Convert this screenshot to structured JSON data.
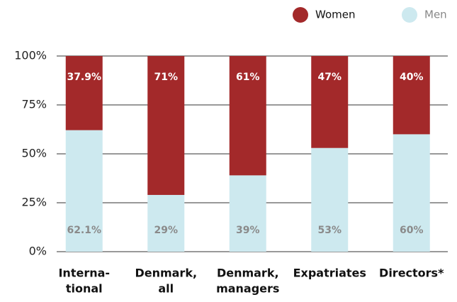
{
  "chart_data": {
    "type": "stacked_bar",
    "categories": [
      [
        "Interna-",
        "tional"
      ],
      [
        "Denmark,",
        "all"
      ],
      [
        "Denmark,",
        "managers"
      ],
      [
        "Expatriates"
      ],
      [
        "Directors*"
      ]
    ],
    "series": [
      {
        "name": "Women",
        "color": "#a3292a",
        "values": [
          37.9,
          71,
          61,
          47,
          40
        ],
        "value_labels": [
          "37.9%",
          "71%",
          "61%",
          "47%",
          "40%"
        ]
      },
      {
        "name": "Men",
        "color": "#cde9ef",
        "values": [
          62.1,
          29,
          39,
          53,
          60
        ],
        "value_labels": [
          "62.1%",
          "29%",
          "39%",
          "53%",
          "60%"
        ]
      }
    ],
    "ylim": [
      0,
      100
    ],
    "yticks": [
      {
        "value": 0,
        "label": "0%"
      },
      {
        "value": 25,
        "label": "25%"
      },
      {
        "value": 50,
        "label": "50%"
      },
      {
        "value": 75,
        "label": "75%"
      },
      {
        "value": 100,
        "label": "100%"
      }
    ],
    "grid": true,
    "legend": "top-right"
  }
}
